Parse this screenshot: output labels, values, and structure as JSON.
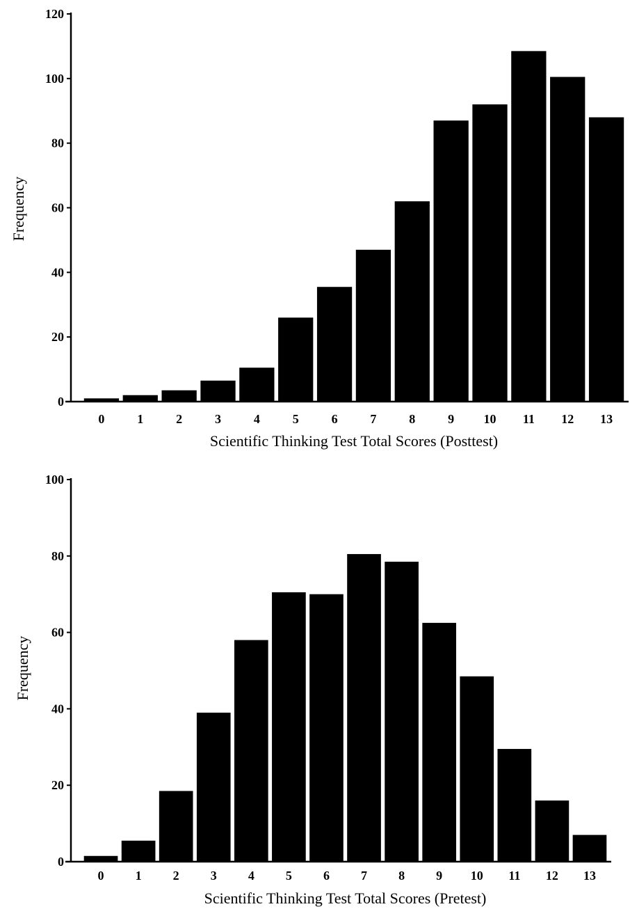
{
  "chart_data": [
    {
      "type": "bar",
      "categories": [
        "0",
        "1",
        "2",
        "3",
        "4",
        "5",
        "6",
        "7",
        "8",
        "9",
        "10",
        "11",
        "12",
        "13"
      ],
      "values": [
        1,
        2,
        3.5,
        6.5,
        10.5,
        26,
        35.5,
        47,
        62,
        87,
        92,
        108.5,
        100.5,
        88
      ],
      "xlabel": "Scientific Thinking Test Total Scores (Posttest)",
      "ylabel": "Frequency",
      "ylim": [
        0,
        120
      ],
      "yticks": [
        0,
        20,
        40,
        60,
        80,
        100,
        120
      ],
      "grid": false
    },
    {
      "type": "bar",
      "categories": [
        "0",
        "1",
        "2",
        "3",
        "4",
        "5",
        "6",
        "7",
        "8",
        "9",
        "10",
        "11",
        "12",
        "13"
      ],
      "values": [
        1.5,
        5.5,
        18.5,
        39,
        58,
        70.5,
        70,
        80.5,
        78.5,
        62.5,
        48.5,
        29.5,
        16,
        7
      ],
      "xlabel": "Scientific Thinking Test Total Scores (Pretest)",
      "ylabel": "Frequency",
      "ylim": [
        0,
        100
      ],
      "yticks": [
        0,
        20,
        40,
        60,
        80,
        100
      ],
      "grid": false
    }
  ]
}
